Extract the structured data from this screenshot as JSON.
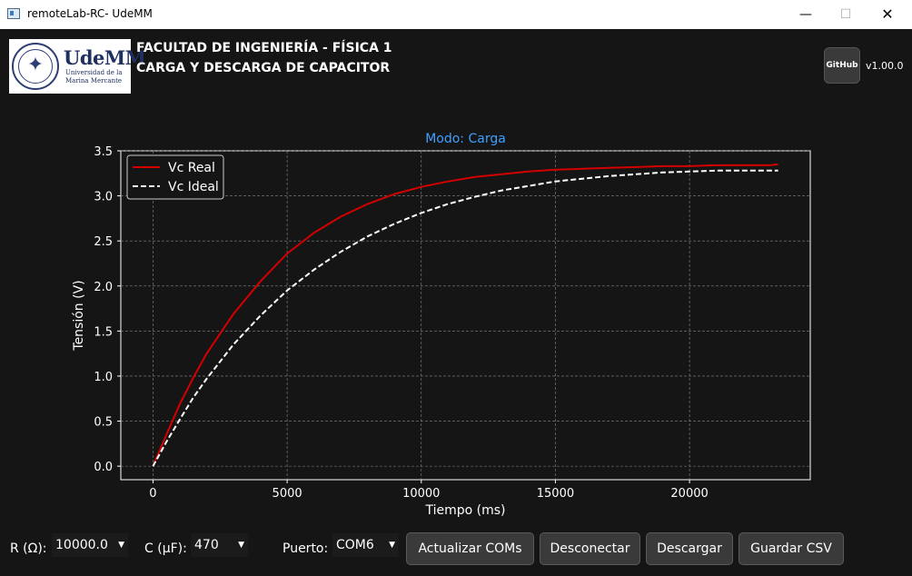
{
  "window": {
    "title": "remoteLab-RC- UdeMM",
    "minimize": "—",
    "maximize": "☐",
    "close": "✕"
  },
  "header": {
    "logo_text": "UdeMM",
    "logo_sub1": "Universidad de la",
    "logo_sub2": "Marina Mercante",
    "line1": "FACULTAD DE INGENIERÍA - FÍSICA 1",
    "line2": "CARGA Y DESCARGA DE CAPACITOR",
    "github_label": "GitHub",
    "version": "v1.00.0"
  },
  "controls": {
    "r_label": "R (Ω):",
    "r_value": "10000.0",
    "c_label": "C (µF):",
    "c_value": "470",
    "port_label": "Puerto:",
    "port_value": "COM6",
    "btn_refresh": "Actualizar COMs",
    "btn_disconnect": "Desconectar",
    "btn_discharge": "Descargar",
    "btn_save": "Guardar CSV"
  },
  "colors": {
    "background": "#151515",
    "real": "#d40000",
    "ideal": "#ffffff",
    "title": "#3ea0ff",
    "grid": "#888888"
  },
  "chart_data": {
    "type": "line",
    "title": "Modo: Carga",
    "xlabel": "Tiempo (ms)",
    "ylabel": "Tensión (V)",
    "xlim": [
      -1200,
      24500
    ],
    "ylim": [
      -0.15,
      3.5
    ],
    "xticks": [
      0,
      5000,
      10000,
      15000,
      20000
    ],
    "yticks": [
      0.0,
      0.5,
      1.0,
      1.5,
      2.0,
      2.5,
      3.0,
      3.5
    ],
    "grid": true,
    "legend_position": "top-left",
    "series": [
      {
        "name": "Vc Real",
        "color": "#d40000",
        "style": "solid",
        "x": [
          0,
          500,
          1000,
          1500,
          2000,
          3000,
          4000,
          5000,
          6000,
          7000,
          8000,
          9000,
          10000,
          11000,
          12000,
          13000,
          14000,
          15000,
          16000,
          17000,
          18000,
          19000,
          20000,
          21000,
          22000,
          23000,
          23300
        ],
        "y": [
          0.0,
          0.35,
          0.69,
          0.98,
          1.25,
          1.69,
          2.05,
          2.36,
          2.59,
          2.77,
          2.91,
          3.02,
          3.1,
          3.16,
          3.21,
          3.24,
          3.27,
          3.29,
          3.3,
          3.31,
          3.32,
          3.33,
          3.33,
          3.34,
          3.34,
          3.34,
          3.35
        ]
      },
      {
        "name": "Vc Ideal",
        "color": "#ffffff",
        "style": "dashed",
        "x": [
          0,
          500,
          1000,
          1500,
          2000,
          3000,
          4000,
          5000,
          6000,
          7000,
          8000,
          9000,
          10000,
          11000,
          12000,
          13000,
          14000,
          15000,
          16000,
          17000,
          18000,
          19000,
          20000,
          21000,
          22000,
          23000,
          23300
        ],
        "y": [
          0.0,
          0.27,
          0.52,
          0.76,
          0.97,
          1.35,
          1.67,
          1.95,
          2.18,
          2.38,
          2.55,
          2.69,
          2.81,
          2.91,
          2.99,
          3.06,
          3.11,
          3.16,
          3.19,
          3.22,
          3.24,
          3.26,
          3.27,
          3.28,
          3.28,
          3.28,
          3.28
        ]
      }
    ]
  }
}
